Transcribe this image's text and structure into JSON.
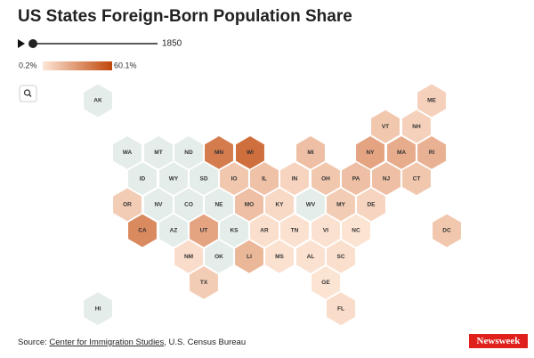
{
  "header": {
    "title": "US States Foreign-Born Population Share"
  },
  "slider": {
    "year": 1850
  },
  "legend": {
    "min": {
      "value": 0.2,
      "label": "0.2%"
    },
    "max": {
      "value": 60.1,
      "label": "60.1%"
    },
    "color_low": "#fde6d6",
    "color_high": "#c0470a",
    "no_data_color": "#e4ede9"
  },
  "states": [
    {
      "label": "AK",
      "value": null
    },
    {
      "label": "ME",
      "value": 8
    },
    {
      "label": "VT",
      "value": 12
    },
    {
      "label": "NH",
      "value": 8
    },
    {
      "label": "WA",
      "value": null
    },
    {
      "label": "MT",
      "value": null
    },
    {
      "label": "ND",
      "value": null
    },
    {
      "label": "MN",
      "value": 40
    },
    {
      "label": "WI",
      "value": 45
    },
    {
      "label": "MI",
      "value": 15
    },
    {
      "label": "NY",
      "value": 25
    },
    {
      "label": "MA",
      "value": 22
    },
    {
      "label": "RI",
      "value": 20
    },
    {
      "label": "ID",
      "value": null
    },
    {
      "label": "WY",
      "value": null
    },
    {
      "label": "SD",
      "value": null
    },
    {
      "label": "IO",
      "value": 12
    },
    {
      "label": "IL",
      "value": 14
    },
    {
      "label": "IN",
      "value": 7
    },
    {
      "label": "OH",
      "value": 12
    },
    {
      "label": "PA",
      "value": 15
    },
    {
      "label": "NJ",
      "value": 15
    },
    {
      "label": "CT",
      "value": 12
    },
    {
      "label": "OR",
      "value": 10
    },
    {
      "label": "NV",
      "value": null
    },
    {
      "label": "CO",
      "value": null
    },
    {
      "label": "NE",
      "value": null
    },
    {
      "label": "MO",
      "value": 15
    },
    {
      "label": "KY",
      "value": 5
    },
    {
      "label": "WV",
      "value": null
    },
    {
      "label": "MY",
      "value": 10
    },
    {
      "label": "DE",
      "value": 7
    },
    {
      "label": "CA",
      "value": 35
    },
    {
      "label": "AZ",
      "value": null
    },
    {
      "label": "UT",
      "value": 25
    },
    {
      "label": "KS",
      "value": null
    },
    {
      "label": "AR",
      "value": 3
    },
    {
      "label": "TN",
      "value": 2
    },
    {
      "label": "VI",
      "value": 2
    },
    {
      "label": "NC",
      "value": 1
    },
    {
      "label": "DC",
      "value": 12
    },
    {
      "label": "NM",
      "value": 4
    },
    {
      "label": "OK",
      "value": null
    },
    {
      "label": "LI",
      "value": 18
    },
    {
      "label": "MS",
      "value": 2
    },
    {
      "label": "AL",
      "value": 2
    },
    {
      "label": "SC",
      "value": 3
    },
    {
      "label": "TX",
      "value": 10
    },
    {
      "label": "GE",
      "value": 1
    },
    {
      "label": "HI",
      "value": null
    },
    {
      "label": "FL",
      "value": 4
    }
  ],
  "source": {
    "prefix": "Source: ",
    "link": "Center for Immigration Studies",
    "suffix": ", U.S. Census Bureau"
  },
  "logo": "Newsweek"
}
